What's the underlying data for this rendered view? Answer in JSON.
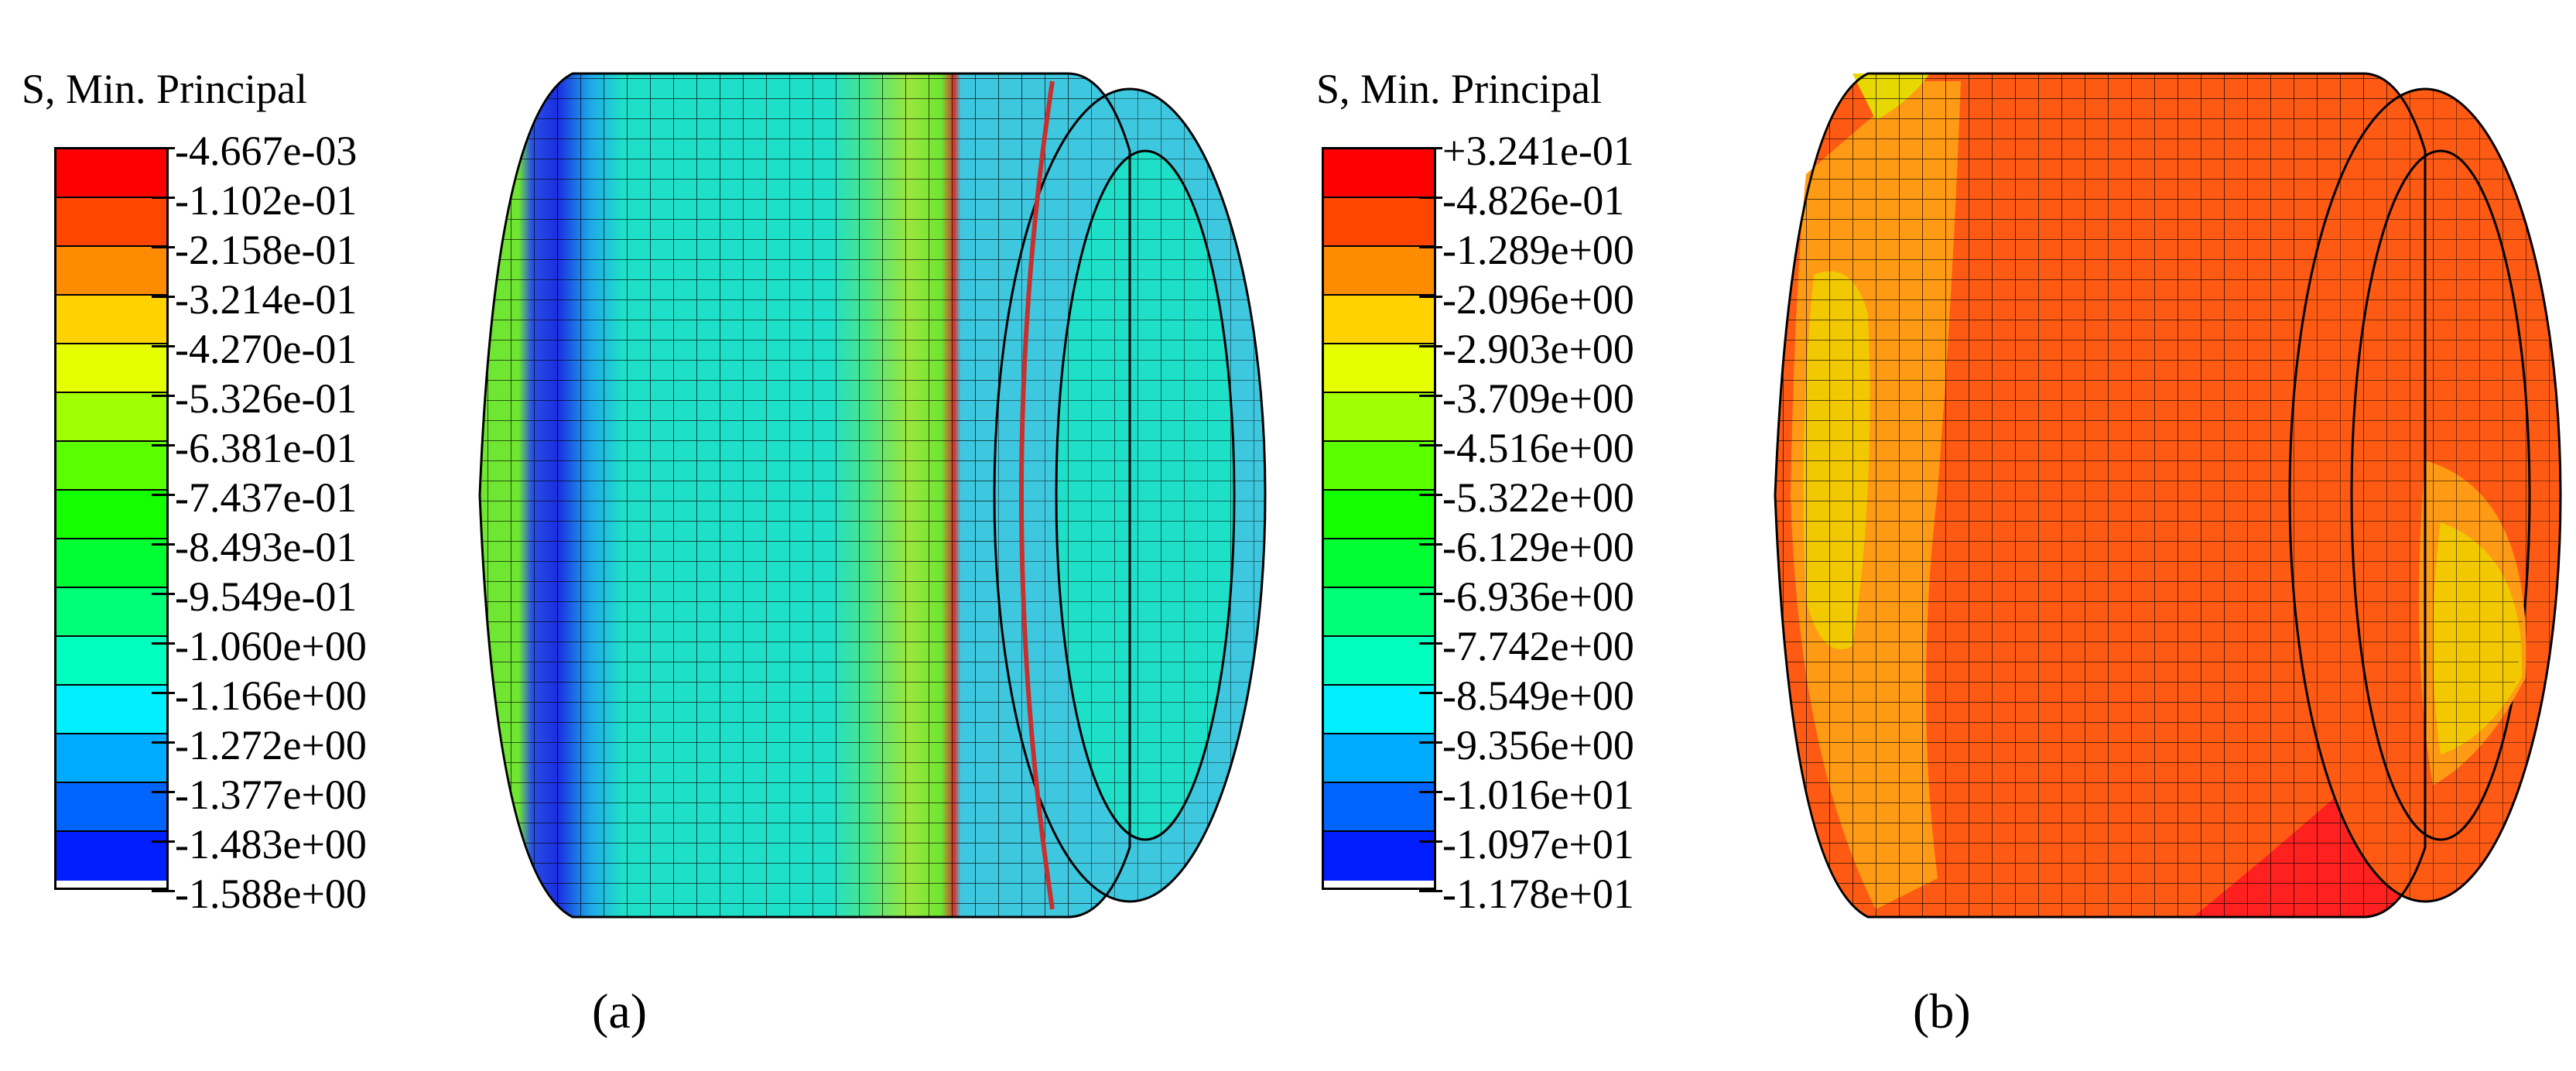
{
  "panels": [
    {
      "legend_title": "S, Min. Principal",
      "legend_values": [
        "-4.667e-03",
        "-1.102e-01",
        "-2.158e-01",
        "-3.214e-01",
        "-4.270e-01",
        "-5.326e-01",
        "-6.381e-01",
        "-7.437e-01",
        "-8.493e-01",
        "-9.549e-01",
        "-1.060e+00",
        "-1.166e+00",
        "-1.272e+00",
        "-1.377e+00",
        "-1.483e+00",
        "-1.588e+00"
      ],
      "caption": "(a)"
    },
    {
      "legend_title": "S, Min. Principal",
      "legend_values": [
        "+3.241e-01",
        "-4.826e-01",
        "-1.289e+00",
        "-2.096e+00",
        "-2.903e+00",
        "-3.709e+00",
        "-4.516e+00",
        "-5.322e+00",
        "-6.129e+00",
        "-6.936e+00",
        "-7.742e+00",
        "-8.549e+00",
        "-9.356e+00",
        "-1.016e+01",
        "-1.097e+01",
        "-1.178e+01"
      ],
      "caption": "(b)"
    }
  ],
  "colors": {
    "legend_scale": [
      "#ff0000",
      "#ff4600",
      "#ff8c00",
      "#ffd200",
      "#e6ff00",
      "#a0ff00",
      "#5aff00",
      "#14ff00",
      "#00ff32",
      "#00ff78",
      "#00ffbe",
      "#00f0ff",
      "#00aaff",
      "#0064ff",
      "#001eff"
    ],
    "model_a_main": "#1ee0c8",
    "model_a_band": "#1a2ee0",
    "model_a_green": "#6ee632",
    "model_b_main": "#ff5a14",
    "model_b_orange": "#ff9a14",
    "model_b_yellow": "#f2c800",
    "model_b_red": "#ff2020",
    "mesh": "#000000"
  }
}
